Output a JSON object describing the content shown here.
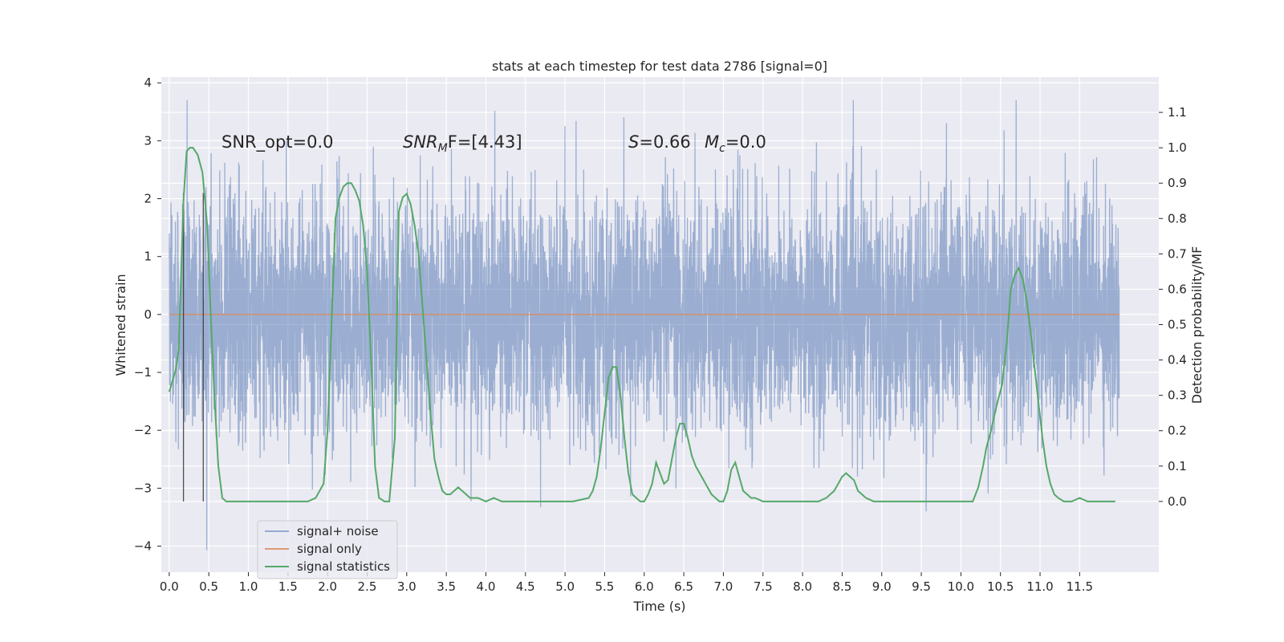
{
  "chart_data": {
    "type": "line",
    "title": "stats at each timestep for test data 2786 [signal=0]",
    "xlabel": "Time (s)",
    "ylabel": "Whitened strain",
    "ylabel_right": "Detection probability/MF",
    "xlim": [
      -0.1,
      12.5
    ],
    "ylim": [
      -4.45,
      4.1
    ],
    "ylim_right": [
      -0.2,
      1.2
    ],
    "x_ticks": [
      "0.0",
      "0.5",
      "1.0",
      "1.5",
      "2.0",
      "2.5",
      "3.0",
      "3.5",
      "4.0",
      "4.5",
      "5.0",
      "5.5",
      "6.0",
      "6.5",
      "7.0",
      "7.5",
      "8.0",
      "8.5",
      "9.0",
      "9.5",
      "10.0",
      "10.5",
      "11.0",
      "11.5"
    ],
    "y_ticks": [
      "4",
      "3",
      "2",
      "1",
      "0",
      "−1",
      "−2",
      "−3",
      "−4"
    ],
    "y_ticks_right": [
      "1.1",
      "1.0",
      "0.9",
      "0.8",
      "0.7",
      "0.6",
      "0.5",
      "0.4",
      "0.3",
      "0.2",
      "0.1",
      "0.0"
    ],
    "grid": true,
    "legend_position": "lower-left",
    "annotations": {
      "snr_opt": "SNR_opt=0.0",
      "snr_mf": "SNR<sub>M</sub>F=[4.43]",
      "snr_mf_parts": [
        "SNR",
        "M",
        "F=[4.43]"
      ],
      "s_parts": [
        "S",
        "=0.66"
      ],
      "mc_parts": [
        "M",
        "c",
        "=0.0"
      ]
    },
    "vertical_markers_x": [
      0.18,
      0.43
    ],
    "series": [
      {
        "name": "signal+ noise",
        "color": "#4c72b0",
        "description_stats": {
          "x_range": [
            0.0,
            12.0
          ],
          "typical_range": [
            -1.7,
            1.7
          ],
          "peak_max": 3.7,
          "peak_min": -4.1
        }
      },
      {
        "name": "signal only",
        "color": "#dd8452",
        "x": [
          0.0,
          12.0
        ],
        "y": [
          0.0,
          0.0
        ]
      },
      {
        "name": "signal statistics",
        "color": "#55a868",
        "axis": "right",
        "x": [
          0.0,
          0.08,
          0.12,
          0.18,
          0.22,
          0.26,
          0.3,
          0.36,
          0.42,
          0.48,
          0.52,
          0.57,
          0.62,
          0.67,
          0.72,
          0.8,
          1.0,
          1.3,
          1.6,
          1.75,
          1.85,
          1.95,
          2.0,
          2.05,
          2.1,
          2.15,
          2.2,
          2.25,
          2.3,
          2.35,
          2.4,
          2.45,
          2.5,
          2.55,
          2.6,
          2.65,
          2.72,
          2.78,
          2.85,
          2.9,
          2.95,
          3.0,
          3.05,
          3.1,
          3.15,
          3.2,
          3.25,
          3.3,
          3.35,
          3.4,
          3.45,
          3.5,
          3.55,
          3.6,
          3.65,
          3.7,
          3.75,
          3.8,
          3.85,
          3.9,
          4.0,
          4.1,
          4.2,
          4.3,
          4.4,
          4.6,
          4.9,
          5.1,
          5.3,
          5.35,
          5.4,
          5.45,
          5.5,
          5.55,
          5.6,
          5.65,
          5.7,
          5.75,
          5.8,
          5.85,
          5.9,
          5.95,
          6.0,
          6.05,
          6.1,
          6.15,
          6.2,
          6.25,
          6.3,
          6.35,
          6.4,
          6.45,
          6.5,
          6.55,
          6.6,
          6.65,
          6.7,
          6.75,
          6.8,
          6.85,
          6.9,
          6.95,
          7.0,
          7.05,
          7.1,
          7.15,
          7.2,
          7.25,
          7.3,
          7.35,
          7.4,
          7.5,
          7.7,
          7.9,
          8.1,
          8.2,
          8.3,
          8.35,
          8.4,
          8.45,
          8.5,
          8.55,
          8.6,
          8.65,
          8.7,
          8.75,
          8.8,
          8.9,
          9.0,
          9.2,
          9.5,
          9.8,
          10.0,
          10.15,
          10.22,
          10.28,
          10.32,
          10.38,
          10.45,
          10.52,
          10.58,
          10.63,
          10.68,
          10.73,
          10.78,
          10.83,
          10.88,
          10.93,
          10.98,
          11.03,
          11.08,
          11.13,
          11.18,
          11.23,
          11.3,
          11.4,
          11.5,
          11.6,
          11.7,
          11.8,
          11.9,
          11.95
        ],
        "y": [
          0.31,
          0.37,
          0.43,
          0.85,
          0.99,
          1.0,
          1.0,
          0.98,
          0.93,
          0.78,
          0.55,
          0.3,
          0.1,
          0.01,
          0.0,
          0.0,
          0.0,
          0.0,
          0.0,
          0.0,
          0.01,
          0.05,
          0.2,
          0.5,
          0.8,
          0.86,
          0.89,
          0.9,
          0.9,
          0.88,
          0.85,
          0.78,
          0.65,
          0.4,
          0.1,
          0.01,
          0.0,
          0.0,
          0.18,
          0.82,
          0.86,
          0.87,
          0.84,
          0.78,
          0.7,
          0.55,
          0.4,
          0.25,
          0.12,
          0.07,
          0.03,
          0.02,
          0.02,
          0.03,
          0.04,
          0.03,
          0.02,
          0.01,
          0.01,
          0.01,
          0.0,
          0.01,
          0.0,
          0.0,
          0.0,
          0.0,
          0.0,
          0.0,
          0.01,
          0.03,
          0.07,
          0.15,
          0.25,
          0.35,
          0.38,
          0.38,
          0.3,
          0.18,
          0.08,
          0.02,
          0.01,
          0.0,
          0.0,
          0.02,
          0.05,
          0.11,
          0.08,
          0.05,
          0.06,
          0.12,
          0.18,
          0.22,
          0.22,
          0.18,
          0.13,
          0.1,
          0.08,
          0.06,
          0.04,
          0.02,
          0.01,
          0.0,
          0.0,
          0.03,
          0.09,
          0.11,
          0.07,
          0.03,
          0.02,
          0.01,
          0.01,
          0.0,
          0.0,
          0.0,
          0.0,
          0.0,
          0.01,
          0.02,
          0.03,
          0.05,
          0.07,
          0.08,
          0.07,
          0.06,
          0.03,
          0.02,
          0.01,
          0.0,
          0.0,
          0.0,
          0.0,
          0.0,
          0.0,
          0.0,
          0.04,
          0.1,
          0.15,
          0.2,
          0.27,
          0.33,
          0.45,
          0.6,
          0.64,
          0.66,
          0.63,
          0.57,
          0.48,
          0.38,
          0.28,
          0.18,
          0.1,
          0.05,
          0.02,
          0.01,
          0.0,
          0.0,
          0.01,
          0.0,
          0.0,
          0.0,
          0.0,
          0.0
        ]
      }
    ]
  }
}
